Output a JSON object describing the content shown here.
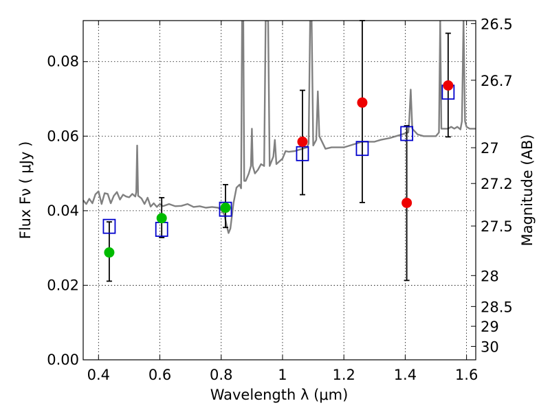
{
  "chart_data": {
    "type": "scatter",
    "xlabel": "Wavelength  λ (μm)",
    "ylabel": "Flux  Fν  ( μJy )",
    "ylabel_right": "Magnitude (AB)",
    "xlim": [
      0.35,
      1.63
    ],
    "ylim": [
      0.0,
      0.091
    ],
    "grid": true,
    "x_ticks": [
      {
        "value": 0.4,
        "label": "0.4"
      },
      {
        "value": 0.6,
        "label": "0.6"
      },
      {
        "value": 0.8,
        "label": "0.8"
      },
      {
        "value": 1.0,
        "label": "1"
      },
      {
        "value": 1.2,
        "label": "1.2"
      },
      {
        "value": 1.4,
        "label": "1.4"
      },
      {
        "value": 1.6,
        "label": "1.6"
      }
    ],
    "y_ticks": [
      {
        "value": 0.0,
        "label": "0.00"
      },
      {
        "value": 0.02,
        "label": "0.02"
      },
      {
        "value": 0.04,
        "label": "0.04"
      },
      {
        "value": 0.06,
        "label": "0.06"
      },
      {
        "value": 0.08,
        "label": "0.08"
      }
    ],
    "right_ticks": [
      {
        "label": "26.5",
        "flux": 0.0902
      },
      {
        "label": "26.7",
        "flux": 0.075
      },
      {
        "label": "27",
        "flux": 0.0569
      },
      {
        "label": "27.2",
        "flux": 0.0473
      },
      {
        "label": "27.5",
        "flux": 0.0359
      },
      {
        "label": "28",
        "flux": 0.0226
      },
      {
        "label": "28.5",
        "flux": 0.0143
      },
      {
        "label": "29",
        "flux": 0.009
      },
      {
        "label": "30",
        "flux": 0.0036
      }
    ],
    "colors": {
      "observed_optical": "#00bb00",
      "observed_nir": "#ee0000",
      "model_box": "#0000cc",
      "spectrum": "#808080",
      "errorbar": "#000000"
    },
    "series": [
      {
        "marker": "circle",
        "color_key": "observed_optical",
        "points": [
          {
            "x": 0.435,
            "y": 0.0288,
            "yerr": [
              0.0211,
              0.037
            ]
          },
          {
            "x": 0.606,
            "y": 0.038,
            "yerr": [
              0.0328,
              0.0435
            ]
          },
          {
            "x": 0.814,
            "y": 0.0408,
            "yerr": [
              0.0355,
              0.047
            ]
          }
        ]
      },
      {
        "marker": "circle",
        "color_key": "observed_nir",
        "points": [
          {
            "x": 1.065,
            "y": 0.0585,
            "yerr": [
              0.0443,
              0.0723
            ]
          },
          {
            "x": 1.26,
            "y": 0.069,
            "yerr": [
              0.0422,
              0.091
            ]
          },
          {
            "x": 1.405,
            "y": 0.0421,
            "yerr": [
              0.0213,
              0.0628
            ]
          },
          {
            "x": 1.54,
            "y": 0.0736,
            "yerr": [
              0.0598,
              0.0876
            ]
          }
        ]
      },
      {
        "marker": "square",
        "color_key": "model_box",
        "points": [
          {
            "x": 0.435,
            "y": 0.0358
          },
          {
            "x": 0.606,
            "y": 0.035
          },
          {
            "x": 0.814,
            "y": 0.0404
          },
          {
            "x": 1.065,
            "y": 0.0553
          },
          {
            "x": 1.26,
            "y": 0.0567
          },
          {
            "x": 1.405,
            "y": 0.0607
          },
          {
            "x": 1.54,
            "y": 0.0718
          }
        ]
      },
      {
        "type": "line",
        "color_key": "spectrum",
        "points": [
          [
            0.35,
            0.0428
          ],
          [
            0.36,
            0.0418
          ],
          [
            0.37,
            0.0432
          ],
          [
            0.38,
            0.042
          ],
          [
            0.39,
            0.0444
          ],
          [
            0.4,
            0.0452
          ],
          [
            0.41,
            0.0418
          ],
          [
            0.42,
            0.0447
          ],
          [
            0.43,
            0.0445
          ],
          [
            0.44,
            0.042
          ],
          [
            0.45,
            0.044
          ],
          [
            0.46,
            0.045
          ],
          [
            0.47,
            0.043
          ],
          [
            0.48,
            0.0443
          ],
          [
            0.49,
            0.0438
          ],
          [
            0.5,
            0.0436
          ],
          [
            0.51,
            0.0445
          ],
          [
            0.52,
            0.0438
          ],
          [
            0.523,
            0.045
          ],
          [
            0.526,
            0.0575
          ],
          [
            0.529,
            0.044
          ],
          [
            0.54,
            0.0433
          ],
          [
            0.55,
            0.0418
          ],
          [
            0.56,
            0.0435
          ],
          [
            0.57,
            0.0411
          ],
          [
            0.58,
            0.042
          ],
          [
            0.59,
            0.041
          ],
          [
            0.6,
            0.0418
          ],
          [
            0.61,
            0.0412
          ],
          [
            0.63,
            0.0418
          ],
          [
            0.65,
            0.0412
          ],
          [
            0.67,
            0.0413
          ],
          [
            0.69,
            0.0418
          ],
          [
            0.71,
            0.041
          ],
          [
            0.73,
            0.0412
          ],
          [
            0.75,
            0.0408
          ],
          [
            0.77,
            0.041
          ],
          [
            0.79,
            0.0408
          ],
          [
            0.8,
            0.0402
          ],
          [
            0.81,
            0.039
          ],
          [
            0.818,
            0.036
          ],
          [
            0.824,
            0.034
          ],
          [
            0.83,
            0.0352
          ],
          [
            0.84,
            0.042
          ],
          [
            0.85,
            0.0462
          ],
          [
            0.86,
            0.047
          ],
          [
            0.865,
            0.046
          ],
          [
            0.868,
            0.091
          ],
          [
            0.872,
            0.091
          ],
          [
            0.875,
            0.048
          ],
          [
            0.88,
            0.048
          ],
          [
            0.89,
            0.05
          ],
          [
            0.897,
            0.052
          ],
          [
            0.9,
            0.062
          ],
          [
            0.903,
            0.052
          ],
          [
            0.91,
            0.05
          ],
          [
            0.92,
            0.051
          ],
          [
            0.93,
            0.0525
          ],
          [
            0.94,
            0.052
          ],
          [
            0.945,
            0.091
          ],
          [
            0.953,
            0.091
          ],
          [
            0.958,
            0.052
          ],
          [
            0.97,
            0.0545
          ],
          [
            0.975,
            0.059
          ],
          [
            0.98,
            0.0525
          ],
          [
            1.0,
            0.054
          ],
          [
            1.01,
            0.056
          ],
          [
            1.02,
            0.0558
          ],
          [
            1.04,
            0.056
          ],
          [
            1.06,
            0.0565
          ],
          [
            1.08,
            0.057
          ],
          [
            1.085,
            0.058
          ],
          [
            1.09,
            0.091
          ],
          [
            1.095,
            0.091
          ],
          [
            1.1,
            0.0575
          ],
          [
            1.11,
            0.059
          ],
          [
            1.115,
            0.072
          ],
          [
            1.12,
            0.06
          ],
          [
            1.14,
            0.0566
          ],
          [
            1.16,
            0.057
          ],
          [
            1.18,
            0.057
          ],
          [
            1.2,
            0.057
          ],
          [
            1.22,
            0.0575
          ],
          [
            1.24,
            0.058
          ],
          [
            1.26,
            0.0585
          ],
          [
            1.28,
            0.0585
          ],
          [
            1.3,
            0.0585
          ],
          [
            1.32,
            0.059
          ],
          [
            1.35,
            0.0595
          ],
          [
            1.37,
            0.06
          ],
          [
            1.39,
            0.0605
          ],
          [
            1.41,
            0.061
          ],
          [
            1.413,
            0.064
          ],
          [
            1.418,
            0.0725
          ],
          [
            1.423,
            0.062
          ],
          [
            1.44,
            0.0605
          ],
          [
            1.46,
            0.06
          ],
          [
            1.48,
            0.06
          ],
          [
            1.5,
            0.06
          ],
          [
            1.51,
            0.061
          ],
          [
            1.514,
            0.091
          ],
          [
            1.518,
            0.062
          ],
          [
            1.53,
            0.062
          ],
          [
            1.54,
            0.062
          ],
          [
            1.55,
            0.0625
          ],
          [
            1.56,
            0.062
          ],
          [
            1.57,
            0.0625
          ],
          [
            1.58,
            0.0618
          ],
          [
            1.585,
            0.064
          ],
          [
            1.59,
            0.091
          ],
          [
            1.595,
            0.064
          ],
          [
            1.6,
            0.0625
          ],
          [
            1.61,
            0.062
          ],
          [
            1.63,
            0.062
          ]
        ]
      }
    ]
  }
}
